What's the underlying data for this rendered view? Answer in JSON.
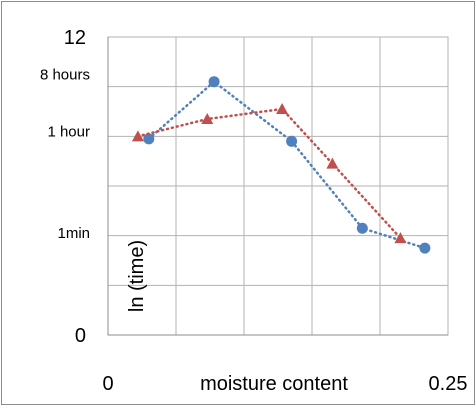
{
  "chart_data": {
    "type": "line",
    "xlabel": "moisture content",
    "ylabel": "ln (time)",
    "xlim": [
      0,
      0.25
    ],
    "ylim": [
      0,
      12
    ],
    "x_tick_labels": [
      {
        "value": 0,
        "label": "0"
      },
      {
        "value": 0.25,
        "label": "0.25"
      }
    ],
    "y_tick_labels": [
      {
        "value": 0,
        "label": "0"
      },
      {
        "value": 12,
        "label": "12"
      },
      {
        "value": 10.5,
        "label": "8 hours"
      },
      {
        "value": 8.2,
        "label": "1 hour"
      },
      {
        "value": 4.1,
        "label": "1min"
      }
    ],
    "x_gridlines": [
      0.05,
      0.1,
      0.15,
      0.2
    ],
    "y_gridlines": [
      2,
      4,
      6,
      8,
      10
    ],
    "grid": true,
    "legend": "none",
    "series": [
      {
        "color": "#4f81bd",
        "marker": "circle",
        "x": [
          0.03,
          0.078,
          0.135,
          0.187,
          0.233
        ],
        "y": [
          7.9,
          10.2,
          7.8,
          4.3,
          3.5
        ]
      },
      {
        "color": "#c0504d",
        "marker": "triangle",
        "x": [
          0.022,
          0.073,
          0.128,
          0.165,
          0.215
        ],
        "y": [
          8.0,
          8.7,
          9.1,
          6.9,
          3.9
        ]
      }
    ]
  }
}
